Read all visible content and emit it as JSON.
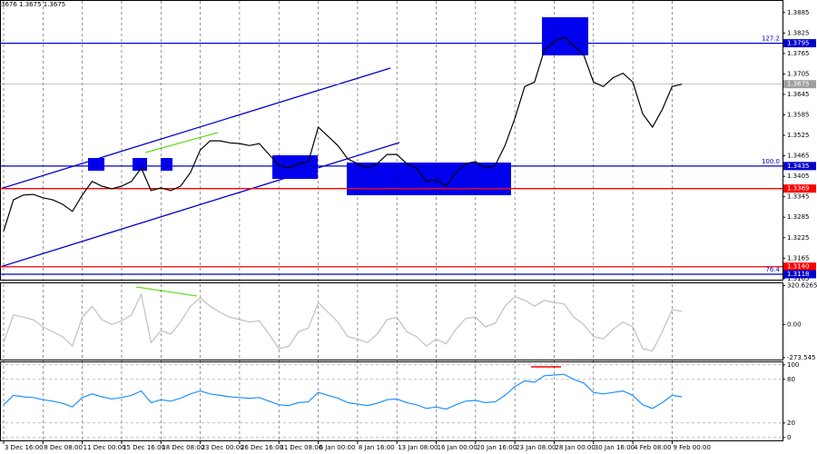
{
  "header": "3676 1.3675 1.3675",
  "chart_data": [
    {
      "type": "line",
      "categories": [
        "3 Dec 16:00",
        null,
        null,
        null,
        "8 Dec 08:00",
        null,
        null,
        null,
        "11 Dec 00:00",
        null,
        null,
        null,
        "15 Dec 16:00",
        null,
        null,
        null,
        "18 Dec 08:00",
        null,
        null,
        null,
        "23 Dec 00:00",
        null,
        null,
        null,
        "26 Dec 16:00",
        null,
        null,
        null,
        "31 Dec 08:00",
        null,
        null,
        null,
        "6 Jan 00:00",
        null,
        null,
        null,
        "8 Jan 16:00",
        null,
        null,
        null,
        "13 Jan 08:00",
        null,
        null,
        null,
        "16 Jan 00:00",
        null,
        null,
        null,
        "20 Jan 16:00",
        null,
        null,
        null,
        "23 Jan 08:00",
        null,
        null,
        null,
        "28 Jan 00:00",
        null,
        null,
        null,
        "30 Jan 16:00",
        null,
        null,
        null,
        "4 Feb 08:00",
        null,
        null,
        null,
        "9 Feb 00:00",
        null
      ],
      "series": [
        {
          "color": "#000000",
          "values": [
            1.3244,
            1.3336,
            1.335,
            1.3352,
            1.3342,
            1.3336,
            1.3323,
            1.3302,
            1.335,
            1.339,
            1.3376,
            1.3368,
            1.3376,
            1.339,
            1.3429,
            1.3363,
            1.3371,
            1.3363,
            1.3376,
            1.3416,
            1.3482,
            1.3509,
            1.3509,
            1.3503,
            1.3501,
            1.3495,
            1.3501,
            1.3469,
            1.3437,
            1.3429,
            1.3442,
            1.3448,
            1.3549,
            1.3522,
            1.3495,
            1.3456,
            1.3442,
            1.3429,
            1.3442,
            1.3469,
            1.3469,
            1.3442,
            1.3429,
            1.339,
            1.3395,
            1.3376,
            1.3416,
            1.3442,
            1.3448,
            1.3429,
            1.3437,
            1.3495,
            1.3575,
            1.3668,
            1.3681,
            1.3774,
            1.38,
            1.3813,
            1.3787,
            1.3761,
            1.3681,
            1.3668,
            1.3694,
            1.3707,
            1.3681,
            1.3588,
            1.3549,
            1.3601,
            1.3668,
            1.3675
          ]
        }
      ],
      "ylim": [
        1.3102,
        1.3919
      ],
      "yticks": [
        1.3885,
        1.3825,
        1.3765,
        1.3705,
        1.3645,
        1.3585,
        1.3525,
        1.3465,
        1.3405,
        1.3345,
        1.3285,
        1.3225,
        1.3165,
        1.3105
      ],
      "grid": false,
      "levels": [
        {
          "value": 1.3795,
          "label": "1.3795",
          "color": "#0000cd",
          "tag": "127.2"
        },
        {
          "value": 1.3675,
          "label": "1.3675",
          "color": "#a0a0a0"
        },
        {
          "value": 1.3435,
          "label": "1.3435",
          "color": "#0000cd",
          "tag": "100.0"
        },
        {
          "value": 1.3369,
          "label": "1.3369",
          "color": "#ff0000"
        },
        {
          "value": 1.314,
          "label": "1.3140",
          "color": "#ff0000"
        },
        {
          "value": 1.3118,
          "label": "1.3118",
          "color": "#0000cd",
          "tag": "76.4"
        }
      ]
    },
    {
      "type": "line",
      "series": [
        {
          "color": "#c0c0c0",
          "values": [
            -150,
            80,
            60,
            40,
            -20,
            -60,
            -100,
            -180,
            60,
            150,
            40,
            0,
            30,
            80,
            250,
            -150,
            -50,
            -80,
            20,
            150,
            220,
            150,
            100,
            60,
            40,
            20,
            30,
            -80,
            -200,
            -180,
            -60,
            -30,
            180,
            100,
            20,
            -100,
            -120,
            -150,
            -80,
            40,
            60,
            -60,
            -100,
            -180,
            -120,
            -160,
            -40,
            50,
            60,
            -20,
            10,
            150,
            230,
            200,
            150,
            200,
            180,
            170,
            60,
            0,
            -100,
            -120,
            -40,
            20,
            -20,
            -200,
            -220,
            -60,
            120,
            110
          ]
        }
      ],
      "ylim": [
        -290,
        340
      ],
      "yticks": [
        320.6265,
        {
          "value": 0,
          "label": "0.00"
        },
        -273.545
      ],
      "grid": false
    },
    {
      "type": "line",
      "series": [
        {
          "color": "#1e90ff",
          "values": [
            45,
            58,
            56,
            55,
            52,
            50,
            47,
            42,
            55,
            60,
            56,
            53,
            55,
            58,
            64,
            48,
            52,
            50,
            54,
            60,
            64,
            60,
            58,
            56,
            55,
            54,
            55,
            50,
            45,
            44,
            48,
            49,
            62,
            58,
            54,
            48,
            46,
            44,
            47,
            52,
            53,
            48,
            45,
            40,
            42,
            39,
            45,
            50,
            51,
            48,
            49,
            58,
            70,
            78,
            76,
            85,
            86,
            87,
            80,
            75,
            62,
            60,
            62,
            64,
            58,
            45,
            40,
            48,
            58,
            56
          ]
        }
      ],
      "ylim": [
        -4,
        103.5
      ],
      "yticks": [
        100,
        80,
        20,
        0
      ],
      "grid": true
    }
  ]
}
